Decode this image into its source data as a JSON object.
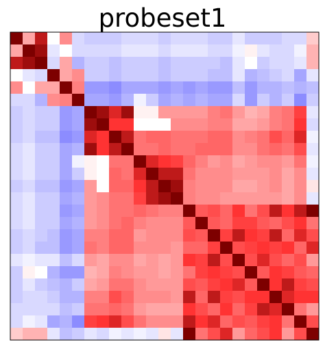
{
  "chart_data": {
    "type": "heatmap",
    "title": "probeset1",
    "xlabel": "",
    "ylabel": "",
    "rows": 25,
    "cols": 25,
    "colormap": "bwr",
    "vmin": -1,
    "vmax": 1,
    "values": [
      [
        1.0,
        0.35,
        0.9,
        0.0,
        0.45,
        -0.15,
        -0.2,
        -0.2,
        -0.2,
        -0.15,
        -0.15,
        -0.15,
        -0.2,
        -0.15,
        -0.15,
        -0.15,
        -0.2,
        -0.2,
        -0.1,
        -0.2,
        -0.2,
        -0.2,
        -0.15,
        -0.15,
        0.2
      ],
      [
        0.35,
        1.0,
        0.95,
        -0.1,
        0.0,
        -0.15,
        -0.15,
        -0.15,
        -0.15,
        -0.1,
        -0.1,
        -0.1,
        -0.15,
        -0.1,
        -0.1,
        -0.1,
        -0.15,
        -0.15,
        -0.05,
        0.05,
        -0.1,
        -0.15,
        -0.15,
        -0.05,
        0.3
      ],
      [
        0.9,
        0.95,
        1.0,
        -0.15,
        0.35,
        -0.3,
        -0.2,
        -0.2,
        -0.25,
        -0.2,
        -0.2,
        -0.2,
        -0.25,
        -0.2,
        -0.2,
        -0.2,
        -0.2,
        -0.25,
        -0.1,
        0.0,
        -0.2,
        -0.15,
        -0.15,
        -0.1,
        0.3
      ],
      [
        0.0,
        -0.1,
        -0.15,
        1.0,
        0.35,
        0.45,
        -0.2,
        -0.2,
        -0.25,
        -0.2,
        -0.2,
        -0.2,
        -0.25,
        -0.2,
        -0.2,
        -0.2,
        -0.25,
        -0.25,
        -0.1,
        -0.3,
        -0.25,
        -0.2,
        -0.15,
        -0.35,
        -0.1
      ],
      [
        0.45,
        0.0,
        0.35,
        0.35,
        1.0,
        0.5,
        -0.4,
        -0.4,
        -0.45,
        -0.35,
        -0.35,
        -0.35,
        -0.4,
        -0.35,
        -0.4,
        -0.35,
        -0.4,
        -0.4,
        -0.25,
        -0.4,
        -0.3,
        -0.3,
        -0.25,
        -0.3,
        -0.25
      ],
      [
        -0.15,
        -0.15,
        -0.3,
        0.45,
        0.5,
        1.0,
        -0.35,
        -0.35,
        -0.4,
        -0.3,
        -0.05,
        -0.2,
        -0.35,
        -0.3,
        -0.35,
        -0.3,
        -0.35,
        -0.35,
        -0.15,
        -0.4,
        -0.2,
        -0.3,
        -0.2,
        -0.45,
        -0.2
      ],
      [
        -0.2,
        -0.15,
        -0.2,
        -0.2,
        -0.4,
        -0.35,
        1.0,
        0.95,
        0.85,
        0.95,
        0.05,
        0.05,
        0.4,
        0.4,
        0.4,
        0.4,
        0.5,
        0.55,
        0.4,
        0.3,
        0.35,
        0.5,
        0.55,
        0.75,
        -0.1
      ],
      [
        -0.2,
        -0.15,
        -0.2,
        -0.2,
        -0.4,
        -0.35,
        0.95,
        1.0,
        0.8,
        0.8,
        0.0,
        0.0,
        0.0,
        0.45,
        0.45,
        0.45,
        0.5,
        0.5,
        0.35,
        0.35,
        0.4,
        0.5,
        0.55,
        0.8,
        -0.15
      ],
      [
        -0.2,
        -0.15,
        -0.25,
        -0.25,
        -0.45,
        -0.4,
        0.85,
        0.8,
        1.0,
        0.9,
        0.55,
        0.6,
        0.6,
        0.55,
        0.55,
        0.55,
        0.6,
        0.6,
        0.45,
        0.5,
        0.55,
        0.7,
        0.6,
        0.85,
        -0.05
      ],
      [
        -0.15,
        -0.1,
        -0.2,
        -0.2,
        -0.35,
        -0.3,
        0.95,
        0.8,
        0.9,
        1.0,
        0.55,
        0.55,
        0.6,
        0.55,
        0.55,
        0.6,
        0.6,
        0.6,
        0.45,
        0.45,
        0.55,
        0.6,
        0.55,
        0.7,
        -0.1
      ],
      [
        -0.15,
        -0.1,
        -0.2,
        -0.2,
        -0.35,
        -0.05,
        0.05,
        0.0,
        0.55,
        0.55,
        1.0,
        0.85,
        0.8,
        0.75,
        0.6,
        0.5,
        0.4,
        0.45,
        0.35,
        0.4,
        0.45,
        0.45,
        0.4,
        0.55,
        -0.05
      ],
      [
        -0.15,
        -0.1,
        -0.2,
        -0.2,
        -0.35,
        -0.2,
        0.05,
        0.0,
        0.6,
        0.55,
        0.85,
        1.0,
        0.9,
        0.9,
        0.55,
        0.45,
        0.45,
        0.45,
        0.4,
        0.4,
        0.4,
        0.45,
        0.35,
        0.45,
        -0.1
      ],
      [
        -0.2,
        -0.15,
        -0.25,
        -0.25,
        -0.4,
        -0.35,
        0.4,
        0.0,
        0.6,
        0.6,
        0.8,
        0.9,
        1.0,
        0.95,
        0.5,
        0.45,
        0.45,
        0.45,
        0.35,
        0.35,
        0.4,
        0.45,
        0.35,
        0.45,
        0.1
      ],
      [
        -0.15,
        -0.1,
        -0.2,
        -0.2,
        -0.35,
        -0.3,
        0.4,
        0.45,
        0.55,
        0.55,
        0.75,
        0.9,
        0.95,
        1.0,
        0.5,
        0.45,
        0.45,
        0.4,
        0.4,
        0.4,
        0.4,
        0.4,
        0.35,
        0.45,
        -0.1
      ],
      [
        -0.15,
        -0.1,
        -0.2,
        -0.2,
        -0.4,
        -0.35,
        0.4,
        0.45,
        0.55,
        0.55,
        0.6,
        0.55,
        0.5,
        0.5,
        1.0,
        0.65,
        0.7,
        0.6,
        0.8,
        0.55,
        0.7,
        0.9,
        0.8,
        0.9,
        1.0
      ],
      [
        -0.15,
        -0.1,
        -0.2,
        -0.2,
        -0.35,
        -0.3,
        0.4,
        0.45,
        0.55,
        0.6,
        0.5,
        0.45,
        0.45,
        0.45,
        0.65,
        1.0,
        0.65,
        0.6,
        0.75,
        0.75,
        0.65,
        0.6,
        0.7,
        0.8,
        0.55
      ],
      [
        -0.2,
        -0.15,
        -0.2,
        -0.25,
        -0.4,
        -0.35,
        0.5,
        0.5,
        0.6,
        0.6,
        0.4,
        0.45,
        0.45,
        0.45,
        0.7,
        0.65,
        1.0,
        0.75,
        0.9,
        0.8,
        0.75,
        0.9,
        0.6,
        0.85,
        0.7
      ],
      [
        -0.2,
        -0.15,
        -0.25,
        -0.25,
        -0.4,
        -0.35,
        0.55,
        0.5,
        0.6,
        0.6,
        0.45,
        0.45,
        0.45,
        0.4,
        0.6,
        0.6,
        0.75,
        1.0,
        0.7,
        0.75,
        0.8,
        0.75,
        0.8,
        0.6,
        0.85
      ],
      [
        -0.1,
        -0.05,
        -0.1,
        -0.1,
        -0.25,
        -0.15,
        0.4,
        0.35,
        0.45,
        0.45,
        0.35,
        0.4,
        0.35,
        0.4,
        0.8,
        0.75,
        0.9,
        0.7,
        1.0,
        0.7,
        0.85,
        0.7,
        0.6,
        0.7,
        0.4
      ],
      [
        -0.2,
        0.05,
        0.0,
        -0.3,
        -0.4,
        -0.4,
        0.3,
        0.35,
        0.5,
        0.45,
        0.4,
        0.4,
        0.35,
        0.4,
        0.55,
        0.75,
        0.8,
        0.75,
        0.7,
        1.0,
        0.65,
        0.8,
        0.75,
        0.65,
        0.6
      ],
      [
        -0.2,
        -0.1,
        -0.2,
        -0.25,
        -0.3,
        -0.2,
        0.35,
        0.4,
        0.55,
        0.55,
        0.45,
        0.4,
        0.4,
        0.4,
        0.7,
        0.65,
        0.75,
        0.8,
        0.85,
        0.65,
        1.0,
        0.8,
        0.9,
        0.75,
        0.7
      ],
      [
        -0.2,
        -0.15,
        -0.15,
        -0.2,
        -0.3,
        -0.3,
        0.5,
        0.5,
        0.7,
        0.6,
        0.45,
        0.45,
        0.45,
        0.4,
        0.9,
        0.6,
        0.9,
        0.75,
        0.7,
        0.8,
        0.8,
        1.0,
        0.85,
        0.8,
        0.8
      ],
      [
        -0.15,
        -0.15,
        -0.15,
        -0.15,
        -0.25,
        -0.2,
        0.55,
        0.55,
        0.6,
        0.55,
        0.4,
        0.35,
        0.35,
        0.35,
        0.8,
        0.7,
        0.6,
        0.8,
        0.6,
        0.75,
        0.9,
        0.85,
        1.0,
        0.55,
        0.4
      ],
      [
        -0.15,
        -0.05,
        -0.1,
        -0.35,
        -0.3,
        -0.45,
        0.75,
        0.8,
        0.85,
        0.7,
        0.55,
        0.45,
        0.45,
        0.45,
        0.9,
        0.8,
        0.85,
        0.6,
        0.7,
        0.65,
        0.75,
        0.8,
        0.55,
        1.0,
        0.7
      ],
      [
        0.2,
        0.3,
        0.3,
        -0.1,
        -0.25,
        -0.2,
        -0.1,
        -0.15,
        -0.05,
        -0.1,
        -0.05,
        -0.1,
        0.1,
        -0.1,
        1.0,
        0.55,
        0.7,
        0.85,
        0.4,
        0.6,
        0.7,
        0.8,
        0.4,
        0.7,
        1.0
      ]
    ]
  }
}
